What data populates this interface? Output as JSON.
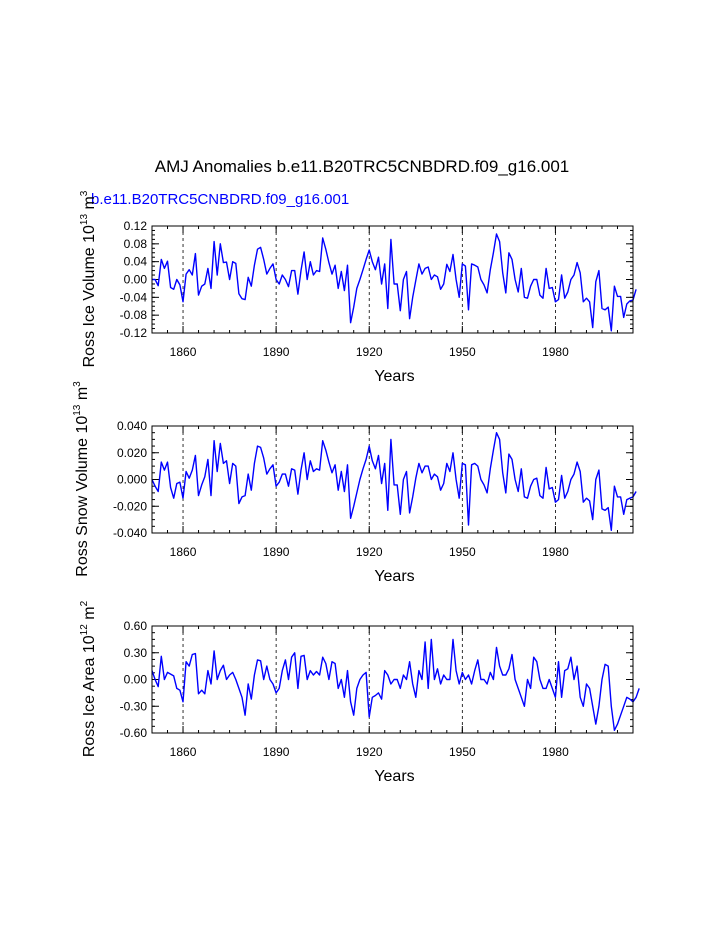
{
  "figure": {
    "title": "AMJ Anomalies b.e11.B20TRC5CNBDRD.f09_g16.001",
    "legend_label": "b.e11.B20TRC5CNBDRD.f09_g16.001",
    "line_color": "#0000ff",
    "ref_line_color": "#000000"
  },
  "chart_data": [
    {
      "type": "line",
      "ylabel_main": "Ross Ice Volume 10",
      "ylabel_exp": "13",
      "ylabel_unit": " m",
      "ylabel_unit_exp": "3",
      "xlabel": "Years",
      "xlim": [
        1850,
        2005
      ],
      "ylim": [
        -0.12,
        0.12
      ],
      "yticks": [
        -0.12,
        -0.08,
        -0.04,
        0.0,
        0.04,
        0.08,
        0.12
      ],
      "ytick_labels": [
        "-0.12",
        "-0.08",
        "-0.04",
        "0.00",
        "0.04",
        "0.08",
        "0.12"
      ],
      "xticks": [
        1860,
        1890,
        1920,
        1950,
        1980
      ],
      "xtick_labels": [
        "1860",
        "1890",
        "1920",
        "1950",
        "1980"
      ],
      "x_start": 1850,
      "series": [
        {
          "values": [
            0.0,
            0.0,
            -0.014,
            0.045,
            0.025,
            0.041,
            -0.018,
            -0.022,
            0.0,
            -0.012,
            -0.05,
            0.012,
            0.022,
            0.01,
            0.058,
            -0.035,
            -0.015,
            -0.01,
            0.025,
            -0.02,
            0.085,
            0.01,
            0.08,
            0.038,
            0.039,
            0.0,
            0.04,
            0.036,
            -0.032,
            -0.043,
            -0.045,
            0.005,
            -0.015,
            0.032,
            0.068,
            0.072,
            0.045,
            0.012,
            0.025,
            0.035,
            0.0,
            -0.01,
            0.01,
            0.0,
            -0.016,
            0.02,
            0.02,
            -0.033,
            0.02,
            0.062,
            0.0,
            0.04,
            0.01,
            0.02,
            0.018,
            0.093,
            0.068,
            0.038,
            0.012,
            0.032,
            -0.02,
            0.018,
            -0.025,
            0.032,
            -0.097,
            -0.062,
            -0.02,
            0.0,
            0.022,
            0.045,
            0.066,
            0.04,
            0.022,
            0.05,
            -0.01,
            0.035,
            -0.065,
            0.09,
            -0.01,
            -0.01,
            -0.07,
            0.0,
            0.018,
            -0.088,
            -0.04,
            -0.002,
            0.035,
            0.012,
            0.025,
            0.028,
            0.0,
            0.01,
            0.006,
            -0.022,
            -0.01,
            0.034,
            0.018,
            0.056,
            0.0,
            -0.04,
            0.035,
            0.03,
            -0.068,
            0.035,
            0.032,
            0.028,
            0.0,
            -0.012,
            -0.03,
            0.022,
            0.06,
            0.102,
            0.085,
            0.015,
            -0.03,
            0.06,
            0.045,
            0.0,
            -0.028,
            0.025,
            -0.04,
            -0.042,
            -0.015,
            0.0,
            0.0,
            -0.035,
            -0.042,
            0.025,
            -0.02,
            -0.018,
            -0.05,
            -0.045,
            0.01,
            -0.042,
            -0.028,
            0.0,
            0.01,
            0.038,
            0.015,
            -0.05,
            -0.042,
            -0.05,
            -0.108,
            -0.005,
            0.02,
            -0.065,
            -0.068,
            -0.062,
            -0.115,
            -0.015,
            -0.038,
            -0.038,
            -0.085,
            -0.055,
            -0.048,
            -0.046,
            -0.022
          ]
        }
      ]
    },
    {
      "type": "line",
      "ylabel_main": "Ross Snow Volume 10",
      "ylabel_exp": "13",
      "ylabel_unit": " m",
      "ylabel_unit_exp": "3",
      "xlabel": "Years",
      "xlim": [
        1850,
        2005
      ],
      "ylim": [
        -0.04,
        0.04
      ],
      "yticks": [
        -0.04,
        -0.02,
        0.0,
        0.02,
        0.04
      ],
      "ytick_labels": [
        "-0.040",
        "-0.020",
        "0.000",
        "0.020",
        "0.040"
      ],
      "xticks": [
        1860,
        1890,
        1920,
        1950,
        1980
      ],
      "xtick_labels": [
        "1860",
        "1890",
        "1920",
        "1950",
        "1980"
      ],
      "x_start": 1850,
      "series": [
        {
          "values": [
            0.0,
            -0.005,
            -0.009,
            0.013,
            0.007,
            0.013,
            -0.006,
            -0.014,
            -0.003,
            -0.002,
            -0.014,
            0.006,
            0.001,
            0.007,
            0.018,
            -0.012,
            -0.004,
            0.002,
            0.015,
            -0.012,
            0.029,
            0.006,
            0.027,
            0.012,
            0.014,
            -0.003,
            0.012,
            0.01,
            -0.018,
            -0.013,
            -0.012,
            0.004,
            -0.008,
            0.012,
            0.025,
            0.024,
            0.016,
            0.004,
            0.008,
            0.011,
            -0.005,
            -0.002,
            0.004,
            0.004,
            -0.005,
            0.008,
            0.007,
            -0.011,
            0.007,
            0.02,
            0.0,
            0.014,
            0.006,
            0.008,
            0.007,
            0.029,
            0.022,
            0.013,
            0.005,
            0.011,
            -0.008,
            0.006,
            -0.009,
            0.011,
            -0.029,
            -0.02,
            -0.01,
            0.0,
            0.008,
            0.015,
            0.025,
            0.014,
            0.008,
            0.018,
            -0.003,
            0.012,
            -0.023,
            0.03,
            -0.004,
            -0.004,
            -0.026,
            0.0,
            0.006,
            -0.025,
            -0.013,
            0.001,
            0.012,
            0.005,
            0.01,
            0.01,
            0.0,
            0.004,
            0.002,
            -0.008,
            -0.003,
            0.012,
            0.006,
            0.02,
            0.0,
            -0.014,
            0.012,
            0.011,
            -0.034,
            0.011,
            0.012,
            0.01,
            0.0,
            -0.004,
            -0.01,
            0.008,
            0.022,
            0.035,
            0.03,
            0.005,
            -0.01,
            0.019,
            0.015,
            0.0,
            -0.009,
            0.008,
            -0.013,
            -0.014,
            -0.005,
            0.0,
            0.001,
            -0.012,
            -0.014,
            0.009,
            -0.007,
            -0.006,
            -0.017,
            -0.015,
            0.003,
            -0.014,
            -0.009,
            0.0,
            0.004,
            0.013,
            0.006,
            -0.017,
            -0.014,
            -0.016,
            -0.03,
            0.0,
            0.007,
            -0.022,
            -0.023,
            -0.021,
            -0.038,
            -0.005,
            -0.013,
            -0.013,
            -0.026,
            -0.015,
            -0.014,
            -0.013,
            -0.009
          ]
        }
      ]
    },
    {
      "type": "line",
      "ylabel_main": "Ross Ice Area 10",
      "ylabel_exp": "12",
      "ylabel_unit": " m",
      "ylabel_unit_exp": "2",
      "xlabel": "Years",
      "xlim": [
        1850,
        2005
      ],
      "ylim": [
        -0.6,
        0.6
      ],
      "yticks": [
        -0.6,
        -0.3,
        0.0,
        0.3,
        0.6
      ],
      "ytick_labels": [
        "-0.60",
        "-0.30",
        "0.00",
        "0.30",
        "0.60"
      ],
      "xticks": [
        1860,
        1890,
        1920,
        1950,
        1980
      ],
      "xtick_labels": [
        "1860",
        "1890",
        "1920",
        "1950",
        "1980"
      ],
      "x_start": 1850,
      "series": [
        {
          "values": [
            0.1,
            0.0,
            -0.08,
            0.26,
            0.0,
            0.08,
            0.06,
            0.04,
            -0.1,
            -0.12,
            -0.25,
            0.2,
            0.15,
            0.28,
            0.29,
            -0.16,
            -0.12,
            -0.16,
            0.1,
            -0.05,
            0.32,
            0.0,
            0.1,
            0.16,
            0.0,
            0.05,
            0.08,
            0.0,
            -0.1,
            -0.2,
            -0.4,
            -0.05,
            -0.22,
            0.05,
            0.22,
            0.21,
            0.0,
            0.15,
            0.0,
            -0.05,
            -0.15,
            -0.1,
            0.1,
            0.22,
            0.0,
            0.25,
            0.3,
            -0.1,
            0.26,
            0.27,
            0.0,
            0.1,
            0.05,
            0.09,
            0.05,
            0.25,
            0.18,
            0.0,
            0.2,
            0.18,
            -0.1,
            0.0,
            -0.2,
            0.1,
            -0.25,
            -0.4,
            -0.1,
            0.0,
            0.05,
            0.08,
            -0.42,
            -0.2,
            -0.18,
            -0.15,
            -0.22,
            0.1,
            0.05,
            -0.05,
            0.0,
            0.0,
            -0.1,
            0.05,
            0.0,
            0.2,
            -0.05,
            -0.2,
            0.1,
            0.0,
            0.42,
            -0.1,
            0.45,
            0.0,
            0.12,
            -0.05,
            0.05,
            0.0,
            0.0,
            0.45,
            0.1,
            -0.05,
            0.08,
            0.0,
            0.05,
            -0.05,
            0.1,
            0.22,
            0.0,
            0.0,
            -0.05,
            0.08,
            0.0,
            0.36,
            0.15,
            0.05,
            0.05,
            0.12,
            0.28,
            0.0,
            -0.1,
            -0.2,
            -0.3,
            0.0,
            -0.1,
            0.25,
            0.2,
            0.0,
            -0.1,
            -0.1,
            0.0,
            -0.1,
            -0.2,
            0.2,
            -0.2,
            0.1,
            0.12,
            0.25,
            0.0,
            0.15,
            -0.2,
            -0.3,
            -0.05,
            -0.1,
            -0.3,
            -0.5,
            -0.3,
            0.0,
            0.17,
            0.15,
            -0.3,
            -0.57,
            -0.5,
            -0.4,
            -0.3,
            -0.2,
            -0.22,
            -0.25,
            -0.2,
            -0.1
          ]
        }
      ]
    }
  ]
}
